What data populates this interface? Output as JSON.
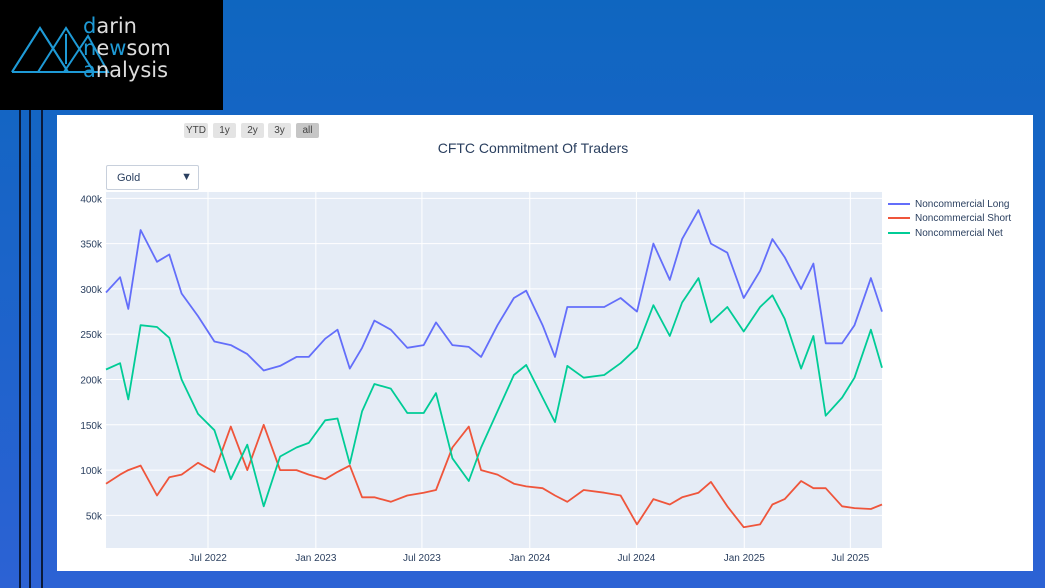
{
  "logo": {
    "line1_accent": "d",
    "line1_rest": "arin",
    "line2_accent": "n",
    "line2_mid": "e",
    "line2_accent2": "w",
    "line2_rest": "som",
    "line3_accent": "a",
    "line3_rest": "nalysis"
  },
  "range_buttons": [
    {
      "label": "YTD",
      "active": false
    },
    {
      "label": "1y",
      "active": false
    },
    {
      "label": "2y",
      "active": false
    },
    {
      "label": "3y",
      "active": false
    },
    {
      "label": "all",
      "active": true
    }
  ],
  "dropdown": {
    "selected": "Gold",
    "arrow": "▼"
  },
  "chart_data": {
    "type": "line",
    "title": "CFTC Commitment Of Traders",
    "xlabel": "",
    "ylabel": "",
    "xlim": [
      "2022-01-08",
      "2025-08-24"
    ],
    "ylim": [
      14000,
      407000
    ],
    "grid": true,
    "legend_position": "top-right",
    "x_ticks": [
      {
        "date": "2022-07-01",
        "label": "Jul 2022"
      },
      {
        "date": "2023-01-01",
        "label": "Jan 2023"
      },
      {
        "date": "2023-07-01",
        "label": "Jul 2023"
      },
      {
        "date": "2024-01-01",
        "label": "Jan 2024"
      },
      {
        "date": "2024-07-01",
        "label": "Jul 2024"
      },
      {
        "date": "2025-01-01",
        "label": "Jan 2025"
      },
      {
        "date": "2025-07-01",
        "label": "Jul 2025"
      }
    ],
    "y_ticks": [
      {
        "value": 50000,
        "label": "50k"
      },
      {
        "value": 100000,
        "label": "100k"
      },
      {
        "value": 150000,
        "label": "150k"
      },
      {
        "value": 200000,
        "label": "200k"
      },
      {
        "value": 250000,
        "label": "250k"
      },
      {
        "value": 300000,
        "label": "300k"
      },
      {
        "value": 350000,
        "label": "350k"
      },
      {
        "value": 400000,
        "label": "400k"
      }
    ],
    "x": [
      "2022-01-08",
      "2022-02-01",
      "2022-02-15",
      "2022-03-08",
      "2022-04-05",
      "2022-04-26",
      "2022-05-17",
      "2022-06-14",
      "2022-07-12",
      "2022-08-09",
      "2022-09-06",
      "2022-10-04",
      "2022-11-01",
      "2022-11-29",
      "2022-12-20",
      "2023-01-17",
      "2023-02-07",
      "2023-02-28",
      "2023-03-21",
      "2023-04-11",
      "2023-05-09",
      "2023-06-06",
      "2023-07-04",
      "2023-07-25",
      "2023-08-22",
      "2023-09-19",
      "2023-10-10",
      "2023-11-07",
      "2023-12-05",
      "2023-12-26",
      "2024-01-23",
      "2024-02-13",
      "2024-03-05",
      "2024-04-02",
      "2024-05-07",
      "2024-06-04",
      "2024-07-02",
      "2024-07-30",
      "2024-08-27",
      "2024-09-17",
      "2024-10-15",
      "2024-11-05",
      "2024-12-03",
      "2024-12-31",
      "2025-01-28",
      "2025-02-18",
      "2025-03-11",
      "2025-04-08",
      "2025-04-29",
      "2025-05-20",
      "2025-06-17",
      "2025-07-08",
      "2025-08-05",
      "2025-08-24"
    ],
    "series": [
      {
        "name": "Noncommercial Long",
        "color": "#636efa",
        "values": [
          296000,
          313000,
          278000,
          365000,
          330000,
          338000,
          295000,
          270000,
          242000,
          238000,
          228000,
          210000,
          215000,
          225000,
          225000,
          245000,
          255000,
          212000,
          235000,
          265000,
          255000,
          235000,
          238000,
          263000,
          238000,
          236000,
          225000,
          260000,
          290000,
          298000,
          260000,
          225000,
          280000,
          280000,
          280000,
          290000,
          275000,
          350000,
          310000,
          355000,
          387000,
          350000,
          340000,
          290000,
          320000,
          355000,
          335000,
          300000,
          328000,
          240000,
          240000,
          260000,
          312000,
          275000
        ]
      },
      {
        "name": "Noncommercial Short",
        "color": "#EF553B",
        "values": [
          85000,
          95000,
          100000,
          105000,
          72000,
          92000,
          95000,
          108000,
          98000,
          148000,
          100000,
          150000,
          100000,
          100000,
          95000,
          90000,
          98000,
          105000,
          70000,
          70000,
          65000,
          72000,
          75000,
          78000,
          125000,
          148000,
          100000,
          95000,
          85000,
          82000,
          80000,
          72000,
          65000,
          78000,
          75000,
          72000,
          40000,
          68000,
          62000,
          70000,
          75000,
          87000,
          60000,
          37000,
          40000,
          62000,
          68000,
          88000,
          80000,
          80000,
          60000,
          58000,
          57000,
          62000
        ]
      },
      {
        "name": "Noncommercial Net",
        "color": "#00cc96",
        "values": [
          211000,
          218000,
          178000,
          260000,
          258000,
          246000,
          200000,
          162000,
          144000,
          90000,
          128000,
          60000,
          115000,
          125000,
          130000,
          155000,
          157000,
          107000,
          165000,
          195000,
          190000,
          163000,
          163000,
          185000,
          113000,
          88000,
          125000,
          165000,
          205000,
          216000,
          180000,
          153000,
          215000,
          202000,
          205000,
          218000,
          235000,
          282000,
          248000,
          285000,
          312000,
          263000,
          280000,
          253000,
          280000,
          293000,
          267000,
          212000,
          248000,
          160000,
          180000,
          202000,
          255000,
          213000
        ]
      }
    ]
  }
}
